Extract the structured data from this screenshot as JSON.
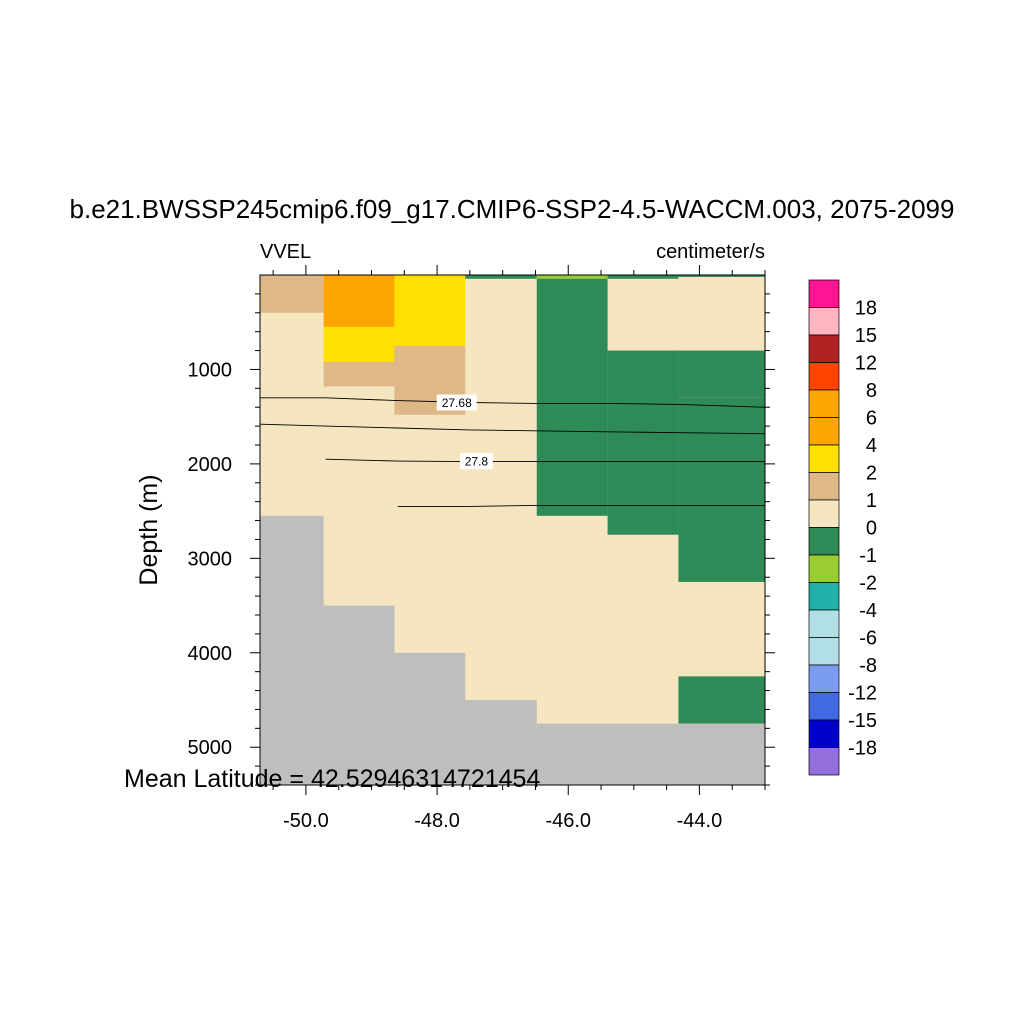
{
  "chart_data": {
    "type": "heatmap",
    "title": "b.e21.BWSSP245cmip6.f09_g17.CMIP6-SSP2-4.5-WACCM.003, 2075-2099",
    "left_string": "VVEL",
    "right_string": "centimeter/s",
    "ylabel": "Depth (m)",
    "xlabel": "",
    "footnote": "Mean Latitude = 42.52946314721454",
    "xlim": [
      -50.7,
      -43.0
    ],
    "ylim": [
      0,
      5400
    ],
    "y_reversed": true,
    "x_ticks": [
      -50.0,
      -48.0,
      -46.0,
      -44.0
    ],
    "x_tick_labels": [
      "-50.0",
      "-48.0",
      "-46.0",
      "-44.0"
    ],
    "y_ticks": [
      1000,
      2000,
      3000,
      4000,
      5000
    ],
    "y_tick_labels": [
      "1000",
      "2000",
      "3000",
      "4000",
      "5000"
    ],
    "missing_color": "#bebebe",
    "colorbar": {
      "labels": [
        "18",
        "15",
        "12",
        "8",
        "6",
        "4",
        "2",
        "1",
        "0",
        "-1",
        "-2",
        "-4",
        "-6",
        "-8",
        "-12",
        "-15",
        "-18"
      ],
      "colors": [
        "#ff1493",
        "#ffb6c1",
        "#b22222",
        "#ff4500",
        "#ffa500",
        "#ffa500",
        "#ffe000",
        "#deb887",
        "#f5e6c0",
        "#2e8b57",
        "#9acd32",
        "#20b2aa",
        "#b0e0e6",
        "#b0e0e6",
        "#7b9cf0",
        "#4169e1",
        "#0000cd",
        "#9370db"
      ]
    },
    "cells": [
      {
        "x": [
          -50.7,
          -49.73
        ],
        "y": [
          0,
          400
        ],
        "color": "#deb887"
      },
      {
        "x": [
          -49.73,
          -48.65
        ],
        "y": [
          0,
          550
        ],
        "color": "#ffa500"
      },
      {
        "x": [
          -49.73,
          -48.65
        ],
        "y": [
          550,
          920
        ],
        "color": "#ffe000"
      },
      {
        "x": [
          -48.65,
          -47.57
        ],
        "y": [
          0,
          750
        ],
        "color": "#ffe000"
      },
      {
        "x": [
          -49.73,
          -48.65
        ],
        "y": [
          920,
          1180
        ],
        "color": "#deb887"
      },
      {
        "x": [
          -48.65,
          -47.57
        ],
        "y": [
          750,
          1480
        ],
        "color": "#deb887"
      },
      {
        "x": [
          -47.57,
          -46.48
        ],
        "y": [
          0,
          40
        ],
        "color": "#2e8b57"
      },
      {
        "x": [
          -46.48,
          -45.4
        ],
        "y": [
          0,
          40
        ],
        "color": "#9acd32"
      },
      {
        "x": [
          -46.48,
          -45.4
        ],
        "y": [
          40,
          2550
        ],
        "color": "#2e8b57"
      },
      {
        "x": [
          -45.4,
          -44.32
        ],
        "y": [
          0,
          40
        ],
        "color": "#2e8b57"
      },
      {
        "x": [
          -45.4,
          -44.32
        ],
        "y": [
          800,
          2750
        ],
        "color": "#2e8b57"
      },
      {
        "x": [
          -44.32,
          -43.0
        ],
        "y": [
          0,
          20
        ],
        "color": "#2e8b57"
      },
      {
        "x": [
          -44.32,
          -43.0
        ],
        "y": [
          800,
          1300
        ],
        "color": "#2e8b57"
      },
      {
        "x": [
          -44.32,
          -43.0
        ],
        "y": [
          1300,
          3250
        ],
        "color": "#2e8b57"
      },
      {
        "x": [
          -44.32,
          -43.0
        ],
        "y": [
          4250,
          4750
        ],
        "color": "#2e8b57"
      },
      {
        "x": [
          -50.7,
          -49.73
        ],
        "y": [
          2550,
          5400
        ],
        "color": "#bebebe"
      },
      {
        "x": [
          -49.73,
          -48.65
        ],
        "y": [
          3500,
          5400
        ],
        "color": "#bebebe"
      },
      {
        "x": [
          -48.65,
          -47.57
        ],
        "y": [
          4000,
          5400
        ],
        "color": "#bebebe"
      },
      {
        "x": [
          -47.57,
          -46.48
        ],
        "y": [
          4500,
          5400
        ],
        "color": "#bebebe"
      },
      {
        "x": [
          -46.48,
          -43.0
        ],
        "y": [
          4750,
          5400
        ],
        "color": "#bebebe"
      }
    ],
    "contours": [
      {
        "x": [
          -50.7,
          -49.7,
          -48.6,
          -47.5,
          -46.5,
          -45.4,
          -44.3,
          -43.0
        ],
        "y": [
          1300,
          1300,
          1330,
          1350,
          1360,
          1360,
          1370,
          1400
        ],
        "label": "27.68",
        "label_at": [
          -47.7,
          1350
        ]
      },
      {
        "x": [
          -50.7,
          -49.7,
          -48.6,
          -47.5,
          -46.5,
          -45.4,
          -44.3,
          -43.0
        ],
        "y": [
          1580,
          1600,
          1620,
          1640,
          1650,
          1660,
          1670,
          1680
        ],
        "label": "",
        "label_at": null
      },
      {
        "x": [
          -49.7,
          -48.6,
          -47.5,
          -46.5,
          -45.4,
          -44.3,
          -43.0
        ],
        "y": [
          1950,
          1970,
          1975,
          1975,
          1975,
          1975,
          1975
        ],
        "label": "27.8",
        "label_at": [
          -47.4,
          1970
        ]
      },
      {
        "x": [
          -48.6,
          -47.5,
          -46.5,
          -45.4,
          -44.3,
          -43.0
        ],
        "y": [
          2450,
          2450,
          2440,
          2440,
          2440,
          2440
        ],
        "label": "",
        "label_at": null
      }
    ]
  }
}
